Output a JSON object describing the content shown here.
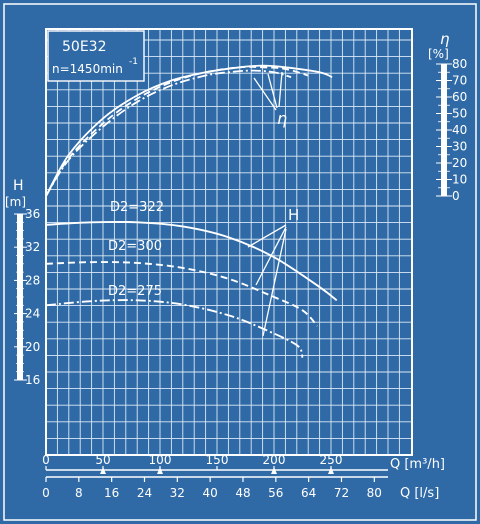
{
  "colors": {
    "background": "#2f6aa6",
    "ink": "#ffffff",
    "grid": "#dce9f7"
  },
  "header": {
    "pump_model": "50E32",
    "speed": "n=1450min",
    "speed_exponent": "-1"
  },
  "labels": {
    "eta_symbol": "η",
    "eta_unit": "[%]",
    "eta_curve_label": "η",
    "head_symbol": "H",
    "head_unit": "[m]",
    "head_curve_label": "H",
    "q_m3h_label": "Q [m³/h]",
    "q_ls_label": "Q [l/s]"
  },
  "chart_data": {
    "type": "line",
    "title": "50E32  n=1450min-1",
    "axes": {
      "head_axis": {
        "label": "H [m]",
        "range": [
          16,
          36
        ],
        "ticks": [
          "16",
          "20",
          "24",
          "28",
          "32",
          "36"
        ]
      },
      "efficiency_axis": {
        "label": "η [%]",
        "range": [
          0,
          80
        ],
        "ticks": [
          "0",
          "10",
          "20",
          "30",
          "40",
          "50",
          "60",
          "70",
          "80"
        ]
      },
      "flow_m3h_axis": {
        "label": "Q [m³/h]",
        "range": [
          0,
          250
        ],
        "ticks": [
          "0",
          "50",
          "100",
          "150",
          "200",
          "250"
        ]
      },
      "flow_ls_axis": {
        "label": "Q [l/s]",
        "range": [
          0,
          80
        ],
        "ticks": [
          "0",
          "8",
          "16",
          "24",
          "32",
          "40",
          "48",
          "56",
          "64",
          "72",
          "80"
        ]
      }
    },
    "grid": true,
    "head_series": [
      {
        "name": "D2=322",
        "style": "solid",
        "points": [
          [
            0,
            34.7
          ],
          [
            40,
            35.0
          ],
          [
            80,
            35.0
          ],
          [
            120,
            34.5
          ],
          [
            160,
            33.2
          ],
          [
            200,
            30.8
          ],
          [
            240,
            27.2
          ],
          [
            255,
            25.6
          ]
        ]
      },
      {
        "name": "D2=300",
        "style": "dashed",
        "points": [
          [
            0,
            30.0
          ],
          [
            40,
            30.2
          ],
          [
            80,
            30.1
          ],
          [
            120,
            29.5
          ],
          [
            160,
            28.2
          ],
          [
            200,
            26.0
          ],
          [
            225,
            24.4
          ],
          [
            238,
            22.5
          ]
        ]
      },
      {
        "name": "D2=275",
        "style": "dash-dot",
        "points": [
          [
            0,
            25.0
          ],
          [
            40,
            25.5
          ],
          [
            80,
            25.6
          ],
          [
            120,
            25.1
          ],
          [
            160,
            23.8
          ],
          [
            190,
            22.2
          ],
          [
            220,
            20.2
          ],
          [
            225,
            18.7
          ]
        ]
      }
    ],
    "efficiency_series": [
      {
        "name": "D2=322",
        "style": "solid",
        "points": [
          [
            0,
            0
          ],
          [
            20,
            25
          ],
          [
            50,
            47
          ],
          [
            80,
            61
          ],
          [
            110,
            70
          ],
          [
            140,
            75
          ],
          [
            170,
            78
          ],
          [
            190,
            79
          ],
          [
            210,
            78
          ],
          [
            240,
            75
          ],
          [
            251,
            72
          ]
        ]
      },
      {
        "name": "D2=300",
        "style": "dashed",
        "points": [
          [
            0,
            0
          ],
          [
            20,
            23
          ],
          [
            50,
            44
          ],
          [
            80,
            59
          ],
          [
            110,
            69
          ],
          [
            140,
            75
          ],
          [
            170,
            78
          ],
          [
            190,
            78
          ],
          [
            210,
            77
          ],
          [
            230,
            73
          ]
        ]
      },
      {
        "name": "D2=275",
        "style": "dash-dot",
        "points": [
          [
            0,
            0
          ],
          [
            20,
            22
          ],
          [
            50,
            42
          ],
          [
            80,
            57
          ],
          [
            110,
            67
          ],
          [
            140,
            73
          ],
          [
            160,
            75
          ],
          [
            180,
            76
          ],
          [
            200,
            75
          ],
          [
            215,
            72
          ]
        ]
      }
    ],
    "annotations": [
      "D2=322",
      "D2=300",
      "D2=275",
      "η",
      "H"
    ]
  }
}
